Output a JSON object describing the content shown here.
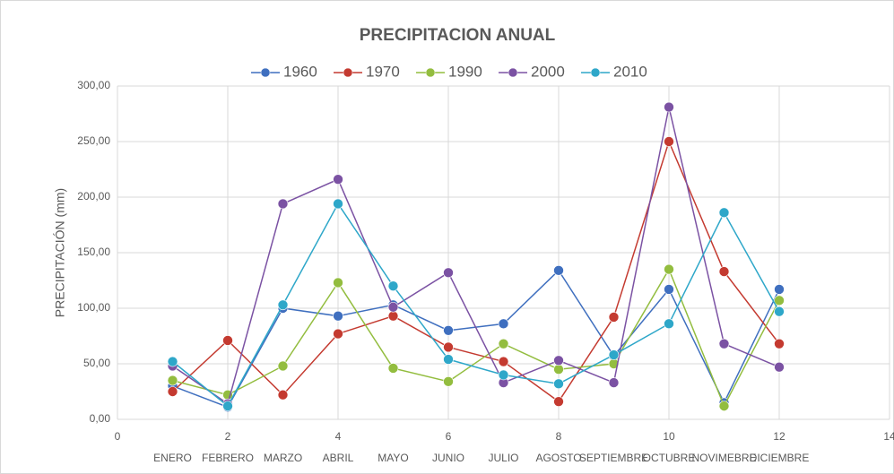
{
  "chart_data": {
    "type": "line",
    "title": "PRECIPITACION ANUAL",
    "y_label": "PRECIPITACIÓN (mm)",
    "x": [
      1,
      2,
      3,
      4,
      5,
      6,
      7,
      8,
      9,
      10,
      11,
      12
    ],
    "categories": [
      "ENERO",
      "FEBRERO",
      "MARZO",
      "ABRIL",
      "MAYO",
      "JUNIO",
      "JULIO",
      "AGOSTO",
      "SEPTIEMBRE",
      "OCTUBRE",
      "NOVIMEBRE",
      "DICIEMBRE"
    ],
    "series": [
      {
        "name": "1960",
        "color": "#3f6fbf",
        "values": [
          30,
          11,
          100,
          93,
          103,
          80,
          86,
          134,
          57,
          117,
          15,
          117
        ]
      },
      {
        "name": "1970",
        "color": "#c43a30",
        "values": [
          25,
          71,
          22,
          77,
          93,
          65,
          52,
          16,
          92,
          250,
          133,
          68
        ]
      },
      {
        "name": "1990",
        "color": "#93bd3f",
        "values": [
          35,
          22,
          48,
          123,
          46,
          34,
          68,
          45,
          50,
          135,
          12,
          107
        ]
      },
      {
        "name": "2000",
        "color": "#7b52a3",
        "values": [
          48,
          14,
          194,
          216,
          101,
          132,
          33,
          53,
          33,
          281,
          68,
          47
        ]
      },
      {
        "name": "2010",
        "color": "#2ea7c9",
        "values": [
          52,
          12,
          103,
          194,
          120,
          54,
          40,
          32,
          58,
          86,
          186,
          97
        ]
      }
    ],
    "xlim": [
      0,
      14
    ],
    "xticks": [
      0,
      2,
      4,
      6,
      8,
      10,
      12,
      14
    ],
    "ylim": [
      0,
      300
    ],
    "yticks": [
      {
        "value": 0,
        "label": "0,00"
      },
      {
        "value": 50,
        "label": "50,00"
      },
      {
        "value": 100,
        "label": "100,00"
      },
      {
        "value": 150,
        "label": "150,00"
      },
      {
        "value": 200,
        "label": "200,00"
      },
      {
        "value": 250,
        "label": "250,00"
      },
      {
        "value": 300,
        "label": "300,00"
      }
    ],
    "grid": true,
    "legend": "top"
  }
}
